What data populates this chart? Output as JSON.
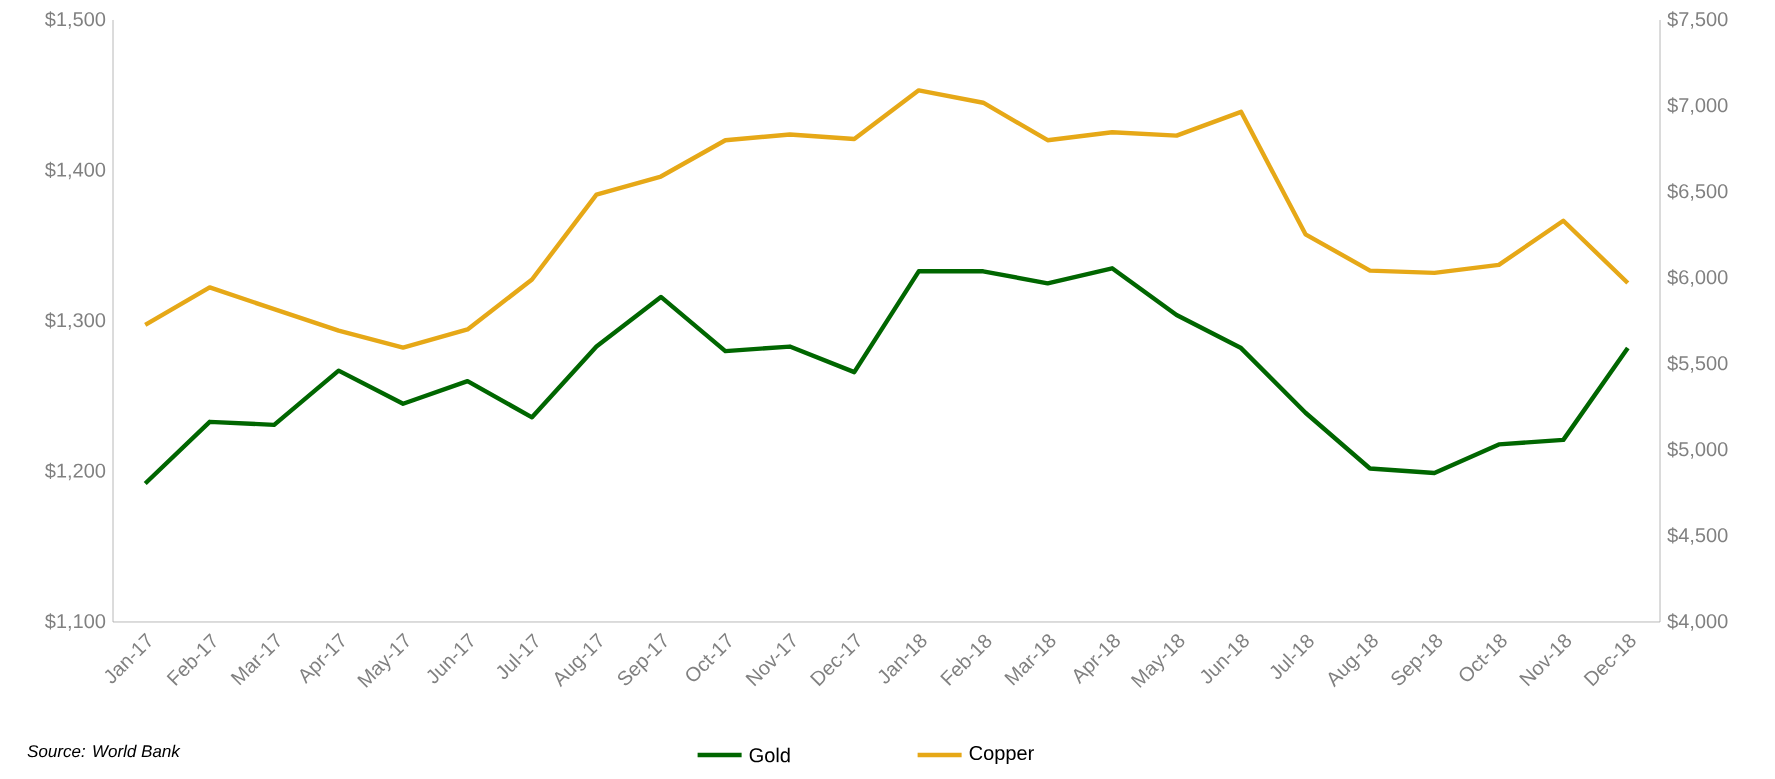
{
  "chart_data": {
    "type": "line",
    "categories": [
      "Jan-17",
      "Feb-17",
      "Mar-17",
      "Apr-17",
      "May-17",
      "Jun-17",
      "Jul-17",
      "Aug-17",
      "Sep-17",
      "Oct-17",
      "Nov-17",
      "Dec-17",
      "Jan-18",
      "Feb-18",
      "Mar-18",
      "Apr-18",
      "May-18",
      "Jun-18",
      "Jul-18",
      "Aug-18",
      "Sep-18",
      "Oct-18",
      "Nov-18",
      "Dec-18"
    ],
    "series": [
      {
        "name": "Gold",
        "color": "#006600",
        "values": [
          1192,
          1233,
          1231,
          1267,
          1245,
          1260,
          1236,
          1283,
          1316,
          1280,
          1283,
          1266,
          1333,
          1333,
          1325,
          1335,
          1304,
          1282,
          1239,
          1202,
          1199,
          1218,
          1221,
          1282
        ]
      },
      {
        "name": "Copper",
        "color": "#e6a817",
        "axis": "y2",
        "values": [
          5727,
          5945,
          5819,
          5694,
          5595,
          5701,
          5991,
          6485,
          6590,
          6801,
          6834,
          6808,
          7091,
          7019,
          6801,
          6847,
          6828,
          6966,
          6254,
          6043,
          6030,
          6076,
          6333,
          5971
        ]
      }
    ],
    "ylim": [
      1100,
      1500
    ],
    "yticks": [
      {
        "value": 1100,
        "label": "$1,100"
      },
      {
        "value": 1200,
        "label": "$1,200"
      },
      {
        "value": 1300,
        "label": "$1,300"
      },
      {
        "value": 1400,
        "label": "$1,400"
      },
      {
        "value": 1500,
        "label": "$1,500"
      }
    ],
    "y2lim": [
      4000,
      7500
    ],
    "y2ticks": [
      {
        "value": 4000,
        "label": "$4,000"
      },
      {
        "value": 4500,
        "label": "$4,500"
      },
      {
        "value": 5000,
        "label": "$5,000"
      },
      {
        "value": 5500,
        "label": "$5,500"
      },
      {
        "value": 6000,
        "label": "$6,000"
      },
      {
        "value": 6500,
        "label": "$6,500"
      },
      {
        "value": 7000,
        "label": "$7,000"
      },
      {
        "value": 7500,
        "label": "$7,500"
      }
    ],
    "legend": "bottom",
    "annotations": [
      "Source: World Bank"
    ]
  }
}
